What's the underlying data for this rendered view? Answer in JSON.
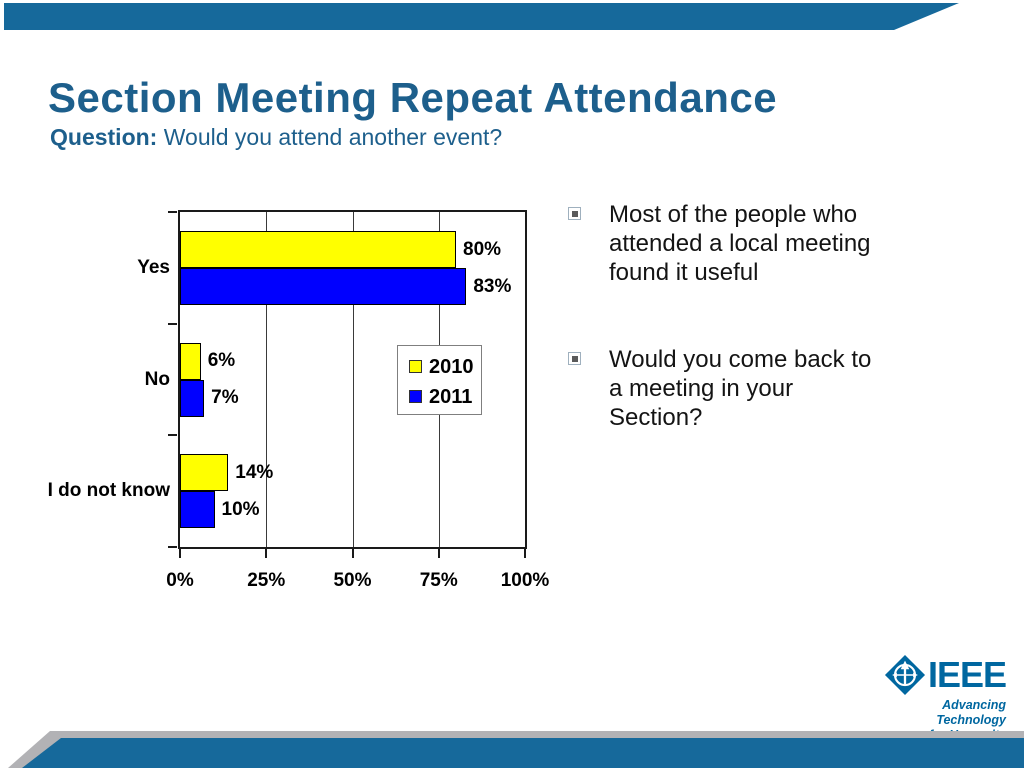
{
  "slide": {
    "title": "Section Meeting Repeat Attendance",
    "subtitle_label": "Question:",
    "subtitle_text": " Would you attend another event?"
  },
  "chart_data": {
    "type": "bar",
    "orientation": "horizontal",
    "title": "",
    "categories": [
      "Yes",
      "No",
      "I do not know"
    ],
    "series": [
      {
        "name": "2010",
        "color": "#FFFF00",
        "values": [
          80,
          6,
          14
        ]
      },
      {
        "name": "2011",
        "color": "#0000FF",
        "values": [
          83,
          7,
          10
        ]
      }
    ],
    "value_labels": [
      [
        "80%",
        "6%",
        "14%"
      ],
      [
        "83%",
        "7%",
        "10%"
      ]
    ],
    "xlim": [
      0,
      100
    ],
    "xticks": [
      0,
      25,
      50,
      75,
      100
    ],
    "xtick_labels": [
      "0%",
      "25%",
      "50%",
      "75%",
      "100%"
    ],
    "grid": true,
    "legend_position": "middle-right"
  },
  "bullets": [
    {
      "lines": [
        "Most of the people who",
        "attended a local meeting",
        "found it useful"
      ]
    },
    {
      "lines": [
        "Would you come back to",
        "a meeting in your",
        "Section?"
      ]
    }
  ],
  "logo": {
    "brand": "IEEE",
    "tagline_line1": "Advancing Technology",
    "tagline_line2": "for Humanity"
  },
  "colors": {
    "header_band_blue": "#16699B",
    "title_blue": "#1D5F8C",
    "footer_gray": "#B2B2B5",
    "footer_blue": "#16699B",
    "logo_blue": "#0067A0",
    "bar_2010_yellow": "#FFFF00",
    "bar_2011_blue": "#0000FF"
  }
}
